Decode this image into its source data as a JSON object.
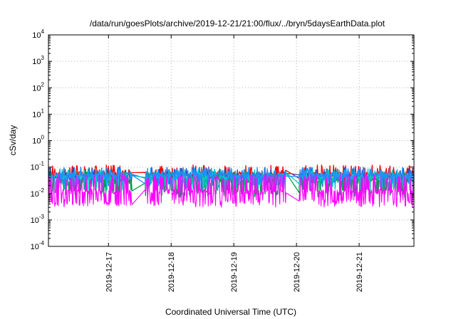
{
  "chart_data": {
    "type": "line",
    "title": "/data/run/goesPlots/archive/2019-12-21/21:00/flux/../bryn/5daysEarthData.plot",
    "xlabel": "Coordinated Universal Time (UTC)",
    "ylabel": "cSv/day",
    "yscale": "log",
    "ylim": [
      0.0001,
      10000
    ],
    "xlim": [
      "2019-12-16T01:00",
      "2019-12-21T21:00"
    ],
    "x_ticks": [
      "2019-12-17",
      "2019-12-18",
      "2019-12-19",
      "2019-12-20",
      "2019-12-21"
    ],
    "y_ticks": [
      {
        "value": 0.0001,
        "base": "10",
        "exp": "-4"
      },
      {
        "value": 0.001,
        "base": "10",
        "exp": "-3"
      },
      {
        "value": 0.01,
        "base": "10",
        "exp": "-2"
      },
      {
        "value": 0.1,
        "base": "10",
        "exp": "-1"
      },
      {
        "value": 1,
        "base": "10",
        "exp": "0"
      },
      {
        "value": 10,
        "base": "10",
        "exp": "1"
      },
      {
        "value": 100,
        "base": "10",
        "exp": "2"
      },
      {
        "value": 1000,
        "base": "10",
        "exp": "3"
      },
      {
        "value": 10000,
        "base": "10",
        "exp": "4"
      }
    ],
    "grid": true,
    "data_gaps": [
      [
        "2019-12-17T09:00",
        "2019-12-17T14:00"
      ],
      [
        "2019-12-19T20:00",
        "2019-12-20T01:00"
      ]
    ],
    "series": [
      {
        "color": "#ff0000",
        "base": 0.055,
        "low": 0.035,
        "high": 0.11,
        "spike_prob": 0.35
      },
      {
        "color": "#2f4fbf",
        "base": 0.045,
        "low": 0.03,
        "high": 0.09,
        "spike_prob": 0.35
      },
      {
        "color": "#00a04f",
        "base": 0.03,
        "low": 0.012,
        "high": 0.06,
        "spike_prob": 0.45
      },
      {
        "color": "#00c8c8",
        "base": 0.04,
        "low": 0.02,
        "high": 0.08,
        "spike_prob": 0.4
      },
      {
        "color": "#1e90ff",
        "base": 0.05,
        "low": 0.03,
        "high": 0.09,
        "spike_prob": 0.35
      },
      {
        "color": "#ff00ff",
        "base": 0.012,
        "low": 0.005,
        "high": 0.05,
        "spike_prob": 0.6
      }
    ]
  }
}
